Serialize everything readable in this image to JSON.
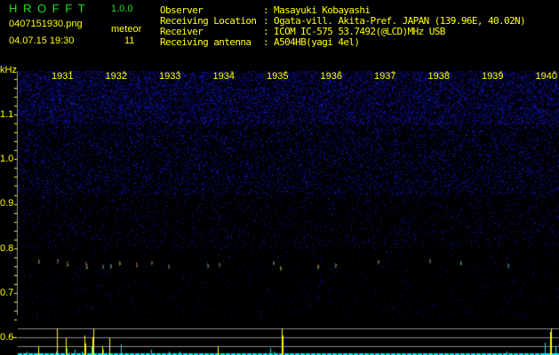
{
  "app": {
    "name": "H R O F F T",
    "version": "1.0.0"
  },
  "file": {
    "name": "0407151930.png",
    "datetime": "04.07.15 19:30"
  },
  "meteor": {
    "label": "meteor",
    "count": "11"
  },
  "info": [
    {
      "label": "Observer",
      "value": ": Masayuki Kobayashi"
    },
    {
      "label": "Receiving Location",
      "value": ": Ogata-vill. Akita-Pref. JAPAN (139.96E, 40.02N)"
    },
    {
      "label": "Receiver",
      "value": ": ICOM IC-575 53.7492(@LCD)MHz USB"
    },
    {
      "label": "Receiving antenna",
      "value": ": A504HB(yagi 4el)"
    }
  ],
  "axis": {
    "unit": "kHz",
    "time_labels": [
      "1931",
      "1932",
      "1933",
      "1934",
      "1935",
      "1936",
      "1937",
      "1938",
      "1939",
      "1940"
    ],
    "freq_labels": [
      "1.1",
      "1.0",
      "0.9",
      "0.8",
      "0.7",
      "0.6"
    ]
  },
  "colors": {
    "text": "#ffff00",
    "title": "#22dd22",
    "noise": "#1a1aff",
    "count_bar": "#ffff00",
    "echo_bar": "#00e5ee"
  }
}
